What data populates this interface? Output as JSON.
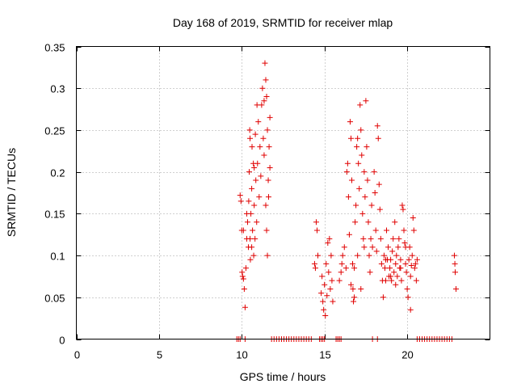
{
  "chart_data": {
    "type": "scatter",
    "title": "Day 168 of 2019, SRMTID for receiver mlap",
    "xlabel": "GPS time / hours",
    "ylabel": "SRMTID / TECUs",
    "xlim": [
      0,
      25
    ],
    "ylim": [
      0,
      0.35
    ],
    "xticks": [
      0,
      5,
      10,
      15,
      20
    ],
    "yticks": [
      0,
      0.05,
      0.1,
      0.15,
      0.2,
      0.25,
      0.3,
      0.35
    ],
    "xtick_labels": [
      "0",
      "5",
      "10",
      "15",
      "20"
    ],
    "ytick_labels": [
      "0",
      "0.05",
      "0.1",
      "0.15",
      "0.2",
      "0.25",
      "0.3",
      "0.35"
    ],
    "grid": true,
    "marker": "+",
    "color": "#e00000",
    "series": [
      {
        "name": "SRMTID",
        "points": [
          [
            9.7,
            0
          ],
          [
            9.8,
            0
          ],
          [
            9.9,
            0
          ],
          [
            10.2,
            0
          ],
          [
            11.8,
            0
          ],
          [
            11.95,
            0
          ],
          [
            12.1,
            0
          ],
          [
            12.25,
            0
          ],
          [
            12.4,
            0
          ],
          [
            12.55,
            0
          ],
          [
            12.7,
            0
          ],
          [
            12.85,
            0
          ],
          [
            13.0,
            0
          ],
          [
            13.15,
            0
          ],
          [
            13.3,
            0
          ],
          [
            13.45,
            0
          ],
          [
            13.6,
            0
          ],
          [
            13.75,
            0
          ],
          [
            13.9,
            0
          ],
          [
            14.05,
            0
          ],
          [
            14.2,
            0
          ],
          [
            14.7,
            0
          ],
          [
            14.8,
            0
          ],
          [
            14.9,
            0
          ],
          [
            15.0,
            0
          ],
          [
            15.7,
            0
          ],
          [
            15.8,
            0
          ],
          [
            15.9,
            0
          ],
          [
            16.0,
            0
          ],
          [
            17.9,
            0
          ],
          [
            18.2,
            0
          ],
          [
            20.6,
            0
          ],
          [
            20.75,
            0
          ],
          [
            20.9,
            0
          ],
          [
            21.05,
            0
          ],
          [
            21.2,
            0
          ],
          [
            21.35,
            0
          ],
          [
            21.5,
            0
          ],
          [
            21.65,
            0
          ],
          [
            21.8,
            0
          ],
          [
            21.95,
            0
          ],
          [
            22.1,
            0
          ],
          [
            22.25,
            0
          ],
          [
            22.4,
            0
          ],
          [
            22.55,
            0
          ],
          [
            22.7,
            0
          ],
          [
            9.9,
            0.172
          ],
          [
            9.95,
            0.165
          ],
          [
            10.0,
            0.13
          ],
          [
            10.02,
            0.08
          ],
          [
            10.05,
            0.075
          ],
          [
            10.1,
            0.072
          ],
          [
            10.15,
            0.06
          ],
          [
            10.2,
            0.038
          ],
          [
            10.25,
            0.085
          ],
          [
            10.3,
            0.12
          ],
          [
            10.35,
            0.14
          ],
          [
            10.4,
            0.11
          ],
          [
            10.42,
            0.165
          ],
          [
            10.45,
            0.2
          ],
          [
            10.48,
            0.25
          ],
          [
            10.5,
            0.24
          ],
          [
            10.52,
            0.095
          ],
          [
            10.55,
            0.15
          ],
          [
            10.6,
            0.18
          ],
          [
            10.62,
            0.23
          ],
          [
            10.65,
            0.13
          ],
          [
            10.7,
            0.21
          ],
          [
            10.72,
            0.1
          ],
          [
            10.75,
            0.16
          ],
          [
            10.8,
            0.12
          ],
          [
            10.82,
            0.245
          ],
          [
            10.85,
            0.19
          ],
          [
            10.9,
            0.14
          ],
          [
            10.92,
            0.28
          ],
          [
            10.95,
            0.21
          ],
          [
            11.0,
            0.26
          ],
          [
            11.05,
            0.17
          ],
          [
            11.1,
            0.23
          ],
          [
            11.15,
            0.195
          ],
          [
            11.2,
            0.28
          ],
          [
            11.25,
            0.3
          ],
          [
            11.3,
            0.24
          ],
          [
            11.35,
            0.22
          ],
          [
            11.4,
            0.33
          ],
          [
            11.45,
            0.31
          ],
          [
            11.5,
            0.29
          ],
          [
            11.55,
            0.25
          ],
          [
            11.6,
            0.19
          ],
          [
            11.62,
            0.17
          ],
          [
            11.65,
            0.23
          ],
          [
            11.7,
            0.205
          ],
          [
            11.55,
            0.1
          ],
          [
            11.5,
            0.13
          ],
          [
            11.45,
            0.16
          ],
          [
            10.3,
            0.15
          ],
          [
            10.6,
            0.11
          ],
          [
            10.75,
            0.205
          ],
          [
            11.35,
            0.285
          ],
          [
            11.7,
            0.265
          ],
          [
            10.1,
            0.13
          ],
          [
            10.5,
            0.12
          ],
          [
            14.4,
            0.09
          ],
          [
            14.45,
            0.085
          ],
          [
            14.5,
            0.14
          ],
          [
            14.55,
            0.13
          ],
          [
            14.6,
            0.1
          ],
          [
            14.8,
            0.055
          ],
          [
            14.85,
            0.075
          ],
          [
            14.9,
            0.045
          ],
          [
            14.95,
            0.035
          ],
          [
            15.0,
            0.065
          ],
          [
            15.05,
            0.028
          ],
          [
            15.1,
            0.09
          ],
          [
            15.15,
            0.052
          ],
          [
            15.2,
            0.115
          ],
          [
            15.25,
            0.08
          ],
          [
            15.3,
            0.12
          ],
          [
            15.35,
            0.06
          ],
          [
            15.4,
            0.1
          ],
          [
            15.45,
            0.07
          ],
          [
            15.5,
            0.045
          ],
          [
            15.9,
            0.07
          ],
          [
            16.0,
            0.08
          ],
          [
            16.05,
            0.09
          ],
          [
            16.1,
            0.1
          ],
          [
            16.2,
            0.11
          ],
          [
            16.3,
            0.085
          ],
          [
            16.35,
            0.2
          ],
          [
            16.4,
            0.21
          ],
          [
            16.45,
            0.17
          ],
          [
            16.5,
            0.125
          ],
          [
            16.55,
            0.26
          ],
          [
            16.6,
            0.24
          ],
          [
            16.65,
            0.19
          ],
          [
            16.7,
            0.09
          ],
          [
            16.72,
            0.06
          ],
          [
            16.75,
            0.045
          ],
          [
            16.8,
            0.05
          ],
          [
            16.85,
            0.14
          ],
          [
            16.9,
            0.16
          ],
          [
            16.95,
            0.23
          ],
          [
            17.0,
            0.24
          ],
          [
            17.05,
            0.21
          ],
          [
            17.1,
            0.18
          ],
          [
            17.15,
            0.28
          ],
          [
            17.2,
            0.25
          ],
          [
            17.25,
            0.22
          ],
          [
            17.3,
            0.15
          ],
          [
            17.35,
            0.12
          ],
          [
            17.4,
            0.2
          ],
          [
            17.45,
            0.17
          ],
          [
            17.5,
            0.285
          ],
          [
            17.55,
            0.23
          ],
          [
            17.6,
            0.19
          ],
          [
            17.65,
            0.14
          ],
          [
            17.7,
            0.1
          ],
          [
            17.75,
            0.08
          ],
          [
            17.8,
            0.12
          ],
          [
            17.85,
            0.16
          ],
          [
            17.9,
            0.11
          ],
          [
            18.0,
            0.2
          ],
          [
            18.05,
            0.175
          ],
          [
            18.1,
            0.13
          ],
          [
            18.15,
            0.105
          ],
          [
            18.2,
            0.255
          ],
          [
            18.25,
            0.24
          ],
          [
            18.3,
            0.185
          ],
          [
            18.35,
            0.155
          ],
          [
            18.4,
            0.12
          ],
          [
            18.45,
            0.09
          ],
          [
            18.5,
            0.07
          ],
          [
            18.55,
            0.05
          ],
          [
            18.6,
            0.1
          ],
          [
            18.65,
            0.085
          ],
          [
            18.7,
            0.07
          ],
          [
            18.75,
            0.13
          ],
          [
            18.8,
            0.095
          ],
          [
            18.85,
            0.11
          ],
          [
            18.9,
            0.075
          ],
          [
            18.95,
            0.085
          ],
          [
            19.0,
            0.095
          ],
          [
            19.05,
            0.07
          ],
          [
            19.1,
            0.105
          ],
          [
            19.15,
            0.12
          ],
          [
            19.2,
            0.08
          ],
          [
            19.25,
            0.14
          ],
          [
            19.3,
            0.09
          ],
          [
            19.35,
            0.1
          ],
          [
            19.4,
            0.075
          ],
          [
            19.45,
            0.11
          ],
          [
            19.5,
            0.12
          ],
          [
            19.55,
            0.085
          ],
          [
            19.6,
            0.095
          ],
          [
            19.65,
            0.07
          ],
          [
            19.7,
            0.16
          ],
          [
            19.75,
            0.155
          ],
          [
            19.8,
            0.13
          ],
          [
            19.85,
            0.115
          ],
          [
            19.9,
            0.09
          ],
          [
            19.95,
            0.08
          ],
          [
            20.0,
            0.06
          ],
          [
            20.05,
            0.05
          ],
          [
            20.1,
            0.095
          ],
          [
            20.15,
            0.11
          ],
          [
            20.2,
            0.075
          ],
          [
            20.25,
            0.088
          ],
          [
            20.3,
            0.1
          ],
          [
            20.35,
            0.145
          ],
          [
            20.4,
            0.13
          ],
          [
            20.45,
            0.085
          ],
          [
            20.5,
            0.09
          ],
          [
            20.55,
            0.07
          ],
          [
            20.6,
            0.095
          ],
          [
            17.0,
            0.1
          ],
          [
            17.2,
            0.06
          ],
          [
            17.4,
            0.11
          ],
          [
            16.8,
            0.085
          ],
          [
            16.6,
            0.065
          ],
          [
            18.7,
            0.095
          ],
          [
            19.0,
            0.075
          ],
          [
            19.3,
            0.065
          ],
          [
            19.6,
            0.085
          ],
          [
            19.9,
            0.11
          ],
          [
            20.2,
            0.035
          ],
          [
            22.85,
            0.1
          ],
          [
            22.9,
            0.08
          ],
          [
            22.95,
            0.06
          ],
          [
            22.88,
            0.09
          ]
        ]
      }
    ]
  }
}
